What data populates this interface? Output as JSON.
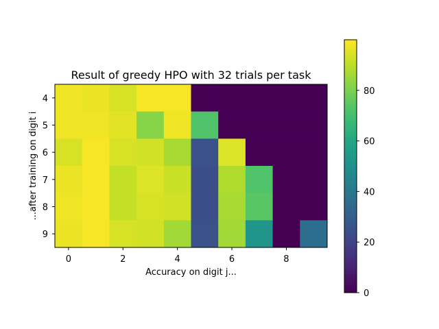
{
  "chart_data": {
    "type": "heatmap",
    "title": "Result of greedy HPO with 32 trials per task",
    "xlabel": "Accuracy on digit j...",
    "ylabel": "...after training on digit i",
    "x_categories": [
      0,
      1,
      2,
      3,
      4,
      5,
      6,
      7,
      8,
      9
    ],
    "y_categories": [
      4,
      5,
      6,
      7,
      8,
      9
    ],
    "x_ticks": [
      0,
      2,
      4,
      6,
      8
    ],
    "y_ticks": [
      4,
      5,
      6,
      7,
      8,
      9
    ],
    "colormap": "viridis",
    "vmin": 0,
    "vmax": 100,
    "colorbar_ticks": [
      0,
      20,
      40,
      60,
      80
    ],
    "values": [
      [
        98,
        97,
        94,
        99,
        99,
        0,
        0,
        0,
        0,
        0
      ],
      [
        98,
        98,
        96,
        82,
        98,
        72,
        0,
        0,
        0,
        0
      ],
      [
        94,
        99,
        94,
        93,
        87,
        25,
        95,
        0,
        0,
        0
      ],
      [
        97,
        99,
        91,
        95,
        92,
        24,
        88,
        72,
        0,
        0
      ],
      [
        98,
        99,
        91,
        94,
        93,
        24,
        87,
        74,
        0,
        0
      ],
      [
        97,
        99,
        94,
        93,
        86,
        25,
        86,
        52,
        0,
        36
      ]
    ]
  }
}
